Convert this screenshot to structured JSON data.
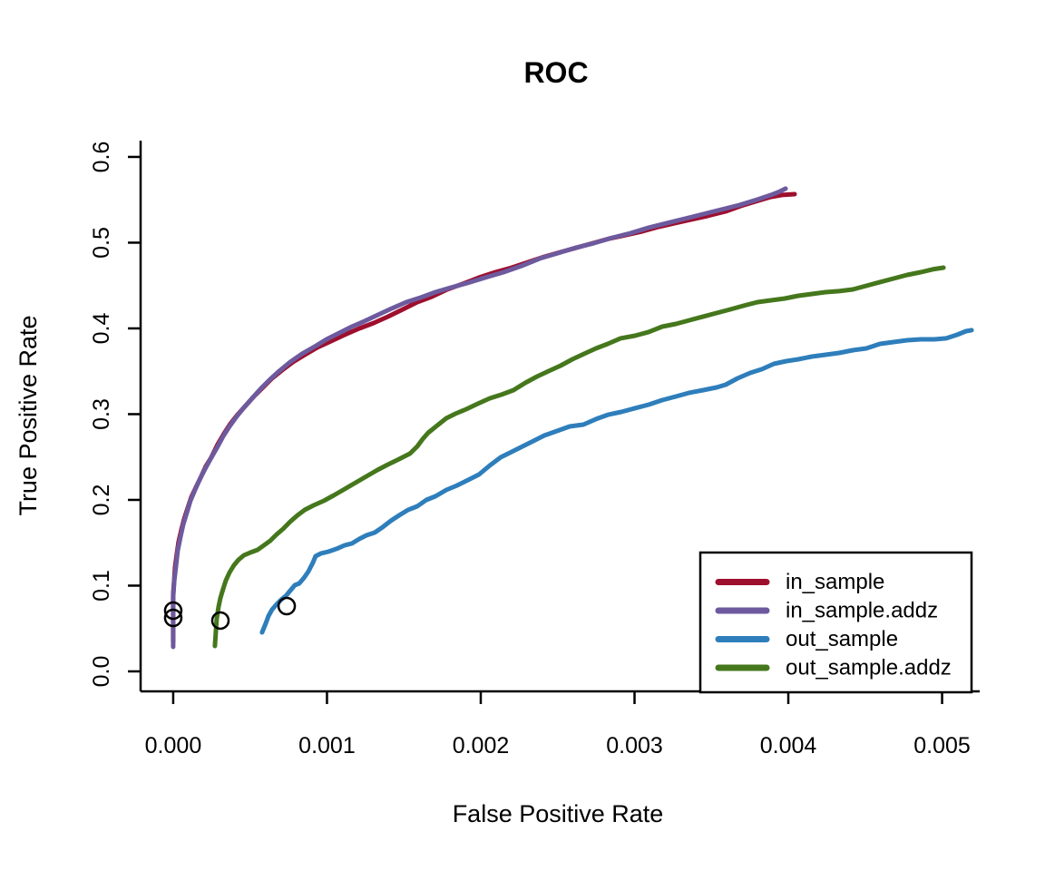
{
  "title": "ROC",
  "axes": {
    "x": {
      "label": "False Positive Rate",
      "tick_values": [
        0,
        0.001,
        0.002,
        0.003,
        0.004,
        0.005
      ],
      "tick_labels": [
        "0.000",
        "0.001",
        "0.002",
        "0.003",
        "0.004",
        "0.005"
      ]
    },
    "y": {
      "label": "True Positive Rate",
      "tick_values": [
        0,
        0.1,
        0.2,
        0.3,
        0.4,
        0.5,
        0.6
      ],
      "tick_labels": [
        "0.0",
        "0.1",
        "0.2",
        "0.3",
        "0.4",
        "0.5",
        "0.6"
      ]
    }
  },
  "legend": {
    "position": "bottom-right",
    "items": [
      {
        "label": "in_sample",
        "color": "#9E0F2E"
      },
      {
        "label": "in_sample.addz",
        "color": "#6D5A9E"
      },
      {
        "label": "out_sample",
        "color": "#2E7EBB"
      },
      {
        "label": "out_sample.addz",
        "color": "#45771C"
      }
    ]
  },
  "chart_data": {
    "type": "line",
    "title": "ROC",
    "xlabel": "False Positive Rate",
    "ylabel": "True Positive Rate",
    "xlim": [
      -0.000212,
      0.005215
    ],
    "ylim": [
      -0.0233,
      0.619
    ],
    "x_ticks": [
      0,
      0.001,
      0.002,
      0.003,
      0.004,
      0.005
    ],
    "y_ticks": [
      0,
      0.1,
      0.2,
      0.3,
      0.4,
      0.5,
      0.6
    ],
    "grid": false,
    "legend_position": "bottom-right",
    "series": [
      {
        "name": "in_sample",
        "color": "#9E0F2E",
        "points": [
          [
            0.0,
            0.0349
          ],
          [
            0.0,
            0.0529
          ],
          [
            0.0,
            0.072
          ],
          [
            0.0,
            0.0899
          ],
          [
            6e-06,
            0.1058
          ],
          [
            1.2e-05,
            0.1217
          ],
          [
            2.4e-05,
            0.1376
          ],
          [
            3.5e-05,
            0.1513
          ],
          [
            5.3e-05,
            0.1651
          ],
          [
            7.1e-05,
            0.1778
          ],
          [
            9.4e-05,
            0.1905
          ],
          [
            0.000118,
            0.2032
          ],
          [
            0.000148,
            0.2148
          ],
          [
            0.000177,
            0.2254
          ],
          [
            0.000212,
            0.2392
          ],
          [
            0.000248,
            0.2497
          ],
          [
            0.000289,
            0.2646
          ],
          [
            0.00033,
            0.2772
          ],
          [
            0.000372,
            0.2889
          ],
          [
            0.000419,
            0.2995
          ],
          [
            0.000472,
            0.3101
          ],
          [
            0.000525,
            0.3206
          ],
          [
            0.000584,
            0.3312
          ],
          [
            0.000643,
            0.3418
          ],
          [
            0.000708,
            0.3513
          ],
          [
            0.000779,
            0.3608
          ],
          [
            0.000856,
            0.3693
          ],
          [
            0.000938,
            0.3778
          ],
          [
            0.001027,
            0.3852
          ],
          [
            0.001115,
            0.3926
          ],
          [
            0.00121,
            0.4
          ],
          [
            0.001304,
            0.4063
          ],
          [
            0.001398,
            0.4138
          ],
          [
            0.001493,
            0.4222
          ],
          [
            0.001587,
            0.4307
          ],
          [
            0.001682,
            0.437
          ],
          [
            0.001782,
            0.4455
          ],
          [
            0.001882,
            0.4519
          ],
          [
            0.001988,
            0.4593
          ],
          [
            0.002095,
            0.4656
          ],
          [
            0.002201,
            0.4709
          ],
          [
            0.002307,
            0.4772
          ],
          [
            0.002413,
            0.4836
          ],
          [
            0.002519,
            0.4889
          ],
          [
            0.002626,
            0.4942
          ],
          [
            0.002732,
            0.4995
          ],
          [
            0.002838,
            0.5048
          ],
          [
            0.002944,
            0.509
          ],
          [
            0.00305,
            0.5132
          ],
          [
            0.003157,
            0.5185
          ],
          [
            0.003263,
            0.5228
          ],
          [
            0.003369,
            0.527
          ],
          [
            0.003475,
            0.5312
          ],
          [
            0.003593,
            0.5365
          ],
          [
            0.003693,
            0.5429
          ],
          [
            0.003788,
            0.5481
          ],
          [
            0.003888,
            0.5534
          ],
          [
            0.003959,
            0.5556
          ],
          [
            0.004041,
            0.5566
          ]
        ]
      },
      {
        "name": "in_sample.addz",
        "color": "#6D5A9E",
        "points": [
          [
            0.0,
            0.0286
          ],
          [
            0.0,
            0.0487
          ],
          [
            0.0,
            0.0677
          ],
          [
            0.0,
            0.0868
          ],
          [
            6e-06,
            0.1048
          ],
          [
            1.8e-05,
            0.1228
          ],
          [
            2.9e-05,
            0.1407
          ],
          [
            4.7e-05,
            0.1566
          ],
          [
            6.5e-05,
            0.1714
          ],
          [
            8.9e-05,
            0.1852
          ],
          [
            0.000112,
            0.1989
          ],
          [
            0.000142,
            0.2116
          ],
          [
            0.000171,
            0.2233
          ],
          [
            0.000207,
            0.236
          ],
          [
            0.000242,
            0.2476
          ],
          [
            0.000283,
            0.2603
          ],
          [
            0.000325,
            0.2741
          ],
          [
            0.000366,
            0.2857
          ],
          [
            0.000413,
            0.2974
          ],
          [
            0.000466,
            0.309
          ],
          [
            0.000519,
            0.3196
          ],
          [
            0.000572,
            0.3302
          ],
          [
            0.000631,
            0.3407
          ],
          [
            0.00069,
            0.3503
          ],
          [
            0.000761,
            0.3608
          ],
          [
            0.000838,
            0.3704
          ],
          [
            0.00092,
            0.3788
          ],
          [
            0.000997,
            0.3873
          ],
          [
            0.00108,
            0.3947
          ],
          [
            0.001162,
            0.4021
          ],
          [
            0.001245,
            0.4085
          ],
          [
            0.001333,
            0.4159
          ],
          [
            0.001422,
            0.4233
          ],
          [
            0.001516,
            0.4307
          ],
          [
            0.001611,
            0.436
          ],
          [
            0.001705,
            0.4423
          ],
          [
            0.001805,
            0.4476
          ],
          [
            0.001912,
            0.4529
          ],
          [
            0.00203,
            0.4593
          ],
          [
            0.002148,
            0.4656
          ],
          [
            0.002266,
            0.473
          ],
          [
            0.002384,
            0.4815
          ],
          [
            0.002502,
            0.4878
          ],
          [
            0.00262,
            0.4942
          ],
          [
            0.002738,
            0.4995
          ],
          [
            0.002856,
            0.5058
          ],
          [
            0.002974,
            0.5111
          ],
          [
            0.003092,
            0.5175
          ],
          [
            0.00321,
            0.5228
          ],
          [
            0.003328,
            0.528
          ],
          [
            0.003446,
            0.5333
          ],
          [
            0.003564,
            0.5386
          ],
          [
            0.003682,
            0.5439
          ],
          [
            0.0038,
            0.5503
          ],
          [
            0.003888,
            0.5556
          ],
          [
            0.003947,
            0.5598
          ],
          [
            0.003982,
            0.563
          ]
        ]
      },
      {
        "name": "out_sample",
        "color": "#2E7EBB",
        "points": [
          [
            0.000578,
            0.0455
          ],
          [
            0.000602,
            0.0561
          ],
          [
            0.00062,
            0.0646
          ],
          [
            0.000643,
            0.072
          ],
          [
            0.000673,
            0.0783
          ],
          [
            0.000702,
            0.0836
          ],
          [
            0.000732,
            0.0878
          ],
          [
            0.000761,
            0.0942
          ],
          [
            0.000791,
            0.1005
          ],
          [
            0.00082,
            0.1026
          ],
          [
            0.00085,
            0.109
          ],
          [
            0.000879,
            0.1164
          ],
          [
            0.000909,
            0.127
          ],
          [
            0.000926,
            0.1344
          ],
          [
            0.000962,
            0.1376
          ],
          [
            0.001009,
            0.1397
          ],
          [
            0.001062,
            0.1429
          ],
          [
            0.001115,
            0.1471
          ],
          [
            0.001162,
            0.1492
          ],
          [
            0.00121,
            0.1545
          ],
          [
            0.001257,
            0.1587
          ],
          [
            0.00131,
            0.1619
          ],
          [
            0.001363,
            0.1683
          ],
          [
            0.001416,
            0.1757
          ],
          [
            0.001469,
            0.182
          ],
          [
            0.001528,
            0.1884
          ],
          [
            0.001587,
            0.1926
          ],
          [
            0.001646,
            0.2
          ],
          [
            0.001705,
            0.2042
          ],
          [
            0.001776,
            0.2116
          ],
          [
            0.001847,
            0.2169
          ],
          [
            0.001918,
            0.2233
          ],
          [
            0.001988,
            0.2296
          ],
          [
            0.002059,
            0.2402
          ],
          [
            0.00213,
            0.2497
          ],
          [
            0.002201,
            0.2561
          ],
          [
            0.002272,
            0.2624
          ],
          [
            0.002343,
            0.2688
          ],
          [
            0.002413,
            0.2751
          ],
          [
            0.002496,
            0.2804
          ],
          [
            0.002578,
            0.2857
          ],
          [
            0.002667,
            0.2878
          ],
          [
            0.002749,
            0.2942
          ],
          [
            0.002832,
            0.2995
          ],
          [
            0.002914,
            0.3026
          ],
          [
            0.003003,
            0.3069
          ],
          [
            0.003092,
            0.3111
          ],
          [
            0.00318,
            0.3164
          ],
          [
            0.003269,
            0.3206
          ],
          [
            0.003357,
            0.3249
          ],
          [
            0.003446,
            0.328
          ],
          [
            0.003534,
            0.3312
          ],
          [
            0.003593,
            0.3344
          ],
          [
            0.00367,
            0.3418
          ],
          [
            0.003752,
            0.3481
          ],
          [
            0.003829,
            0.3524
          ],
          [
            0.003906,
            0.3587
          ],
          [
            0.003988,
            0.3619
          ],
          [
            0.004065,
            0.364
          ],
          [
            0.004153,
            0.3672
          ],
          [
            0.004242,
            0.3693
          ],
          [
            0.00433,
            0.3714
          ],
          [
            0.004419,
            0.3746
          ],
          [
            0.004507,
            0.3767
          ],
          [
            0.004596,
            0.382
          ],
          [
            0.004684,
            0.3841
          ],
          [
            0.004773,
            0.3862
          ],
          [
            0.004861,
            0.3873
          ],
          [
            0.00495,
            0.3873
          ],
          [
            0.005027,
            0.3884
          ],
          [
            0.005097,
            0.3926
          ],
          [
            0.005156,
            0.3968
          ],
          [
            0.005192,
            0.3979
          ]
        ]
      },
      {
        "name": "out_sample.addz",
        "color": "#45771C",
        "points": [
          [
            0.000271,
            0.0296
          ],
          [
            0.000277,
            0.0455
          ],
          [
            0.000283,
            0.0614
          ],
          [
            0.000295,
            0.0751
          ],
          [
            0.000307,
            0.0857
          ],
          [
            0.000325,
            0.0963
          ],
          [
            0.000342,
            0.1058
          ],
          [
            0.000366,
            0.1153
          ],
          [
            0.000395,
            0.1238
          ],
          [
            0.000425,
            0.1302
          ],
          [
            0.00046,
            0.1354
          ],
          [
            0.000502,
            0.1386
          ],
          [
            0.000549,
            0.1418
          ],
          [
            0.00059,
            0.1471
          ],
          [
            0.000631,
            0.1524
          ],
          [
            0.000673,
            0.1598
          ],
          [
            0.000714,
            0.1661
          ],
          [
            0.000761,
            0.1746
          ],
          [
            0.000808,
            0.182
          ],
          [
            0.000856,
            0.1884
          ],
          [
            0.000914,
            0.1937
          ],
          [
            0.000979,
            0.1989
          ],
          [
            0.001044,
            0.2053
          ],
          [
            0.001115,
            0.2127
          ],
          [
            0.001186,
            0.2201
          ],
          [
            0.001257,
            0.2275
          ],
          [
            0.001328,
            0.2349
          ],
          [
            0.001398,
            0.2413
          ],
          [
            0.001469,
            0.2476
          ],
          [
            0.00154,
            0.254
          ],
          [
            0.001587,
            0.2624
          ],
          [
            0.001622,
            0.2709
          ],
          [
            0.001658,
            0.2783
          ],
          [
            0.001717,
            0.2868
          ],
          [
            0.001776,
            0.2952
          ],
          [
            0.001835,
            0.3005
          ],
          [
            0.001906,
            0.3058
          ],
          [
            0.001982,
            0.3122
          ],
          [
            0.002059,
            0.3185
          ],
          [
            0.002136,
            0.3228
          ],
          [
            0.002213,
            0.328
          ],
          [
            0.002289,
            0.3365
          ],
          [
            0.002366,
            0.3439
          ],
          [
            0.002443,
            0.3503
          ],
          [
            0.002519,
            0.3566
          ],
          [
            0.002596,
            0.364
          ],
          [
            0.002673,
            0.3704
          ],
          [
            0.002749,
            0.3767
          ],
          [
            0.002826,
            0.382
          ],
          [
            0.002909,
            0.3884
          ],
          [
            0.003003,
            0.3915
          ],
          [
            0.003092,
            0.3958
          ],
          [
            0.00318,
            0.4021
          ],
          [
            0.003269,
            0.4053
          ],
          [
            0.003357,
            0.4095
          ],
          [
            0.003446,
            0.4138
          ],
          [
            0.003534,
            0.418
          ],
          [
            0.003623,
            0.4222
          ],
          [
            0.003711,
            0.4265
          ],
          [
            0.0038,
            0.4307
          ],
          [
            0.003888,
            0.4328
          ],
          [
            0.003977,
            0.4349
          ],
          [
            0.004065,
            0.4381
          ],
          [
            0.004153,
            0.4402
          ],
          [
            0.004242,
            0.4423
          ],
          [
            0.00433,
            0.4434
          ],
          [
            0.004419,
            0.4455
          ],
          [
            0.004507,
            0.4497
          ],
          [
            0.004596,
            0.454
          ],
          [
            0.004684,
            0.4582
          ],
          [
            0.004773,
            0.4624
          ],
          [
            0.004861,
            0.4656
          ],
          [
            0.004938,
            0.4688
          ],
          [
            0.005009,
            0.4709
          ]
        ]
      }
    ],
    "markers": [
      {
        "x": 0.0,
        "y": 0.0709,
        "series": "in_sample"
      },
      {
        "x": 0.0,
        "y": 0.0624,
        "series": "in_sample.addz"
      },
      {
        "x": 0.000307,
        "y": 0.0593,
        "series": "out_sample.addz"
      },
      {
        "x": 0.000738,
        "y": 0.0762,
        "series": "out_sample"
      }
    ]
  }
}
